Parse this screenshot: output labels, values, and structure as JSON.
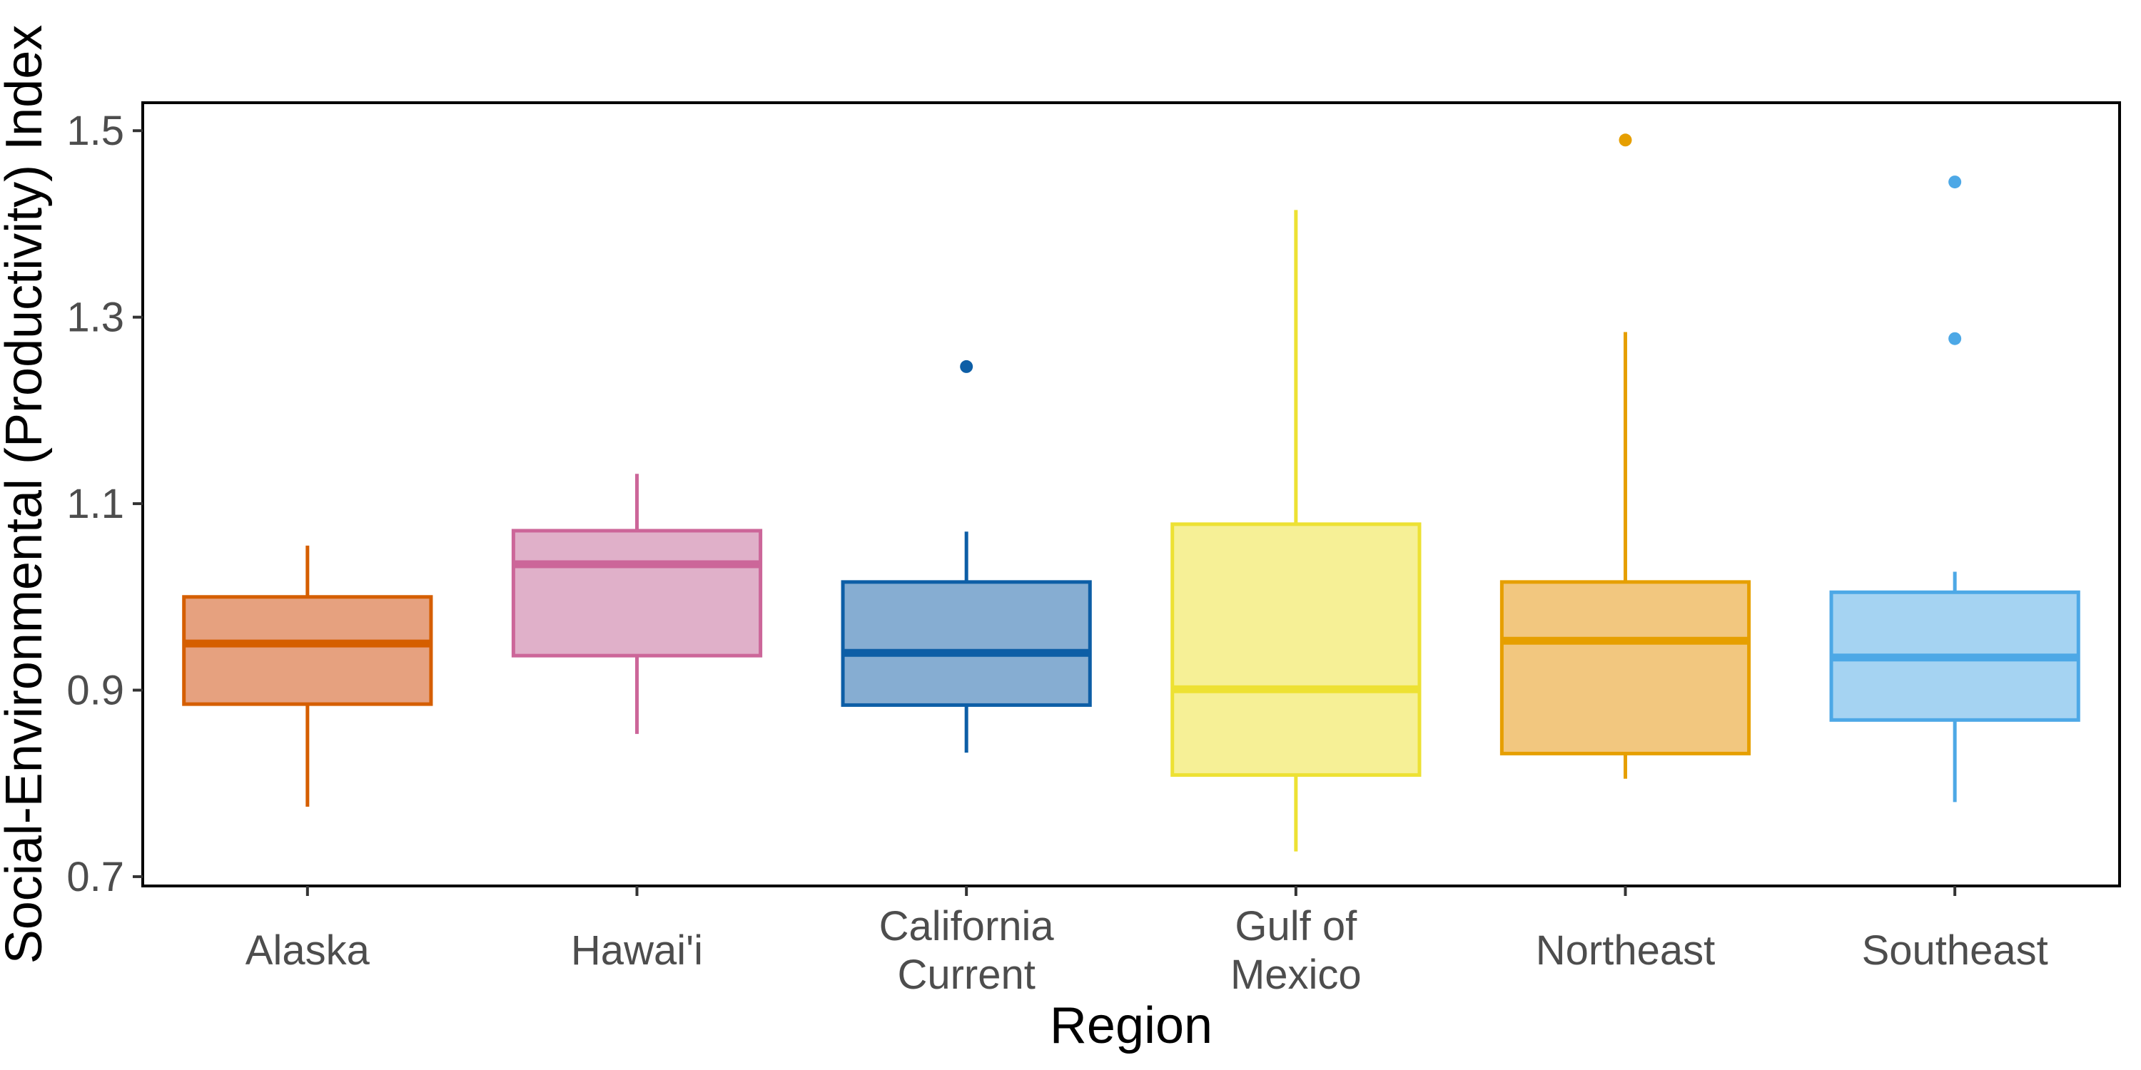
{
  "chart_data": {
    "type": "boxplot",
    "xlabel": "Region",
    "ylabel": "Social-Environmental (Productivity) Index",
    "ylim": [
      0.69,
      1.53
    ],
    "yticks": [
      0.7,
      0.9,
      1.1,
      1.3,
      1.5
    ],
    "ytick_labels": [
      "0.7",
      "0.9",
      "1.1",
      "1.3",
      "1.5"
    ],
    "grid": false,
    "legend": "none",
    "categories": [
      {
        "label_lines": [
          "Alaska"
        ],
        "color": "#D55E00",
        "fill": "#E6A17F",
        "whisker_low": 0.775,
        "q1": 0.885,
        "median": 0.95,
        "q3": 1.0,
        "whisker_high": 1.055,
        "outliers": []
      },
      {
        "label_lines": [
          "Hawai'i"
        ],
        "color": "#CC6699",
        "fill": "#E0B0C9",
        "whisker_low": 0.853,
        "q1": 0.937,
        "median": 1.035,
        "q3": 1.071,
        "whisker_high": 1.132,
        "outliers": []
      },
      {
        "label_lines": [
          "California",
          "Current"
        ],
        "color": "#0D5EA6",
        "fill": "#86ADD2",
        "whisker_low": 0.833,
        "q1": 0.884,
        "median": 0.94,
        "q3": 1.016,
        "whisker_high": 1.07,
        "outliers": [
          1.247
        ]
      },
      {
        "label_lines": [
          "Gulf of",
          "Mexico"
        ],
        "color": "#EDE133",
        "fill": "#F6F096",
        "whisker_low": 0.727,
        "q1": 0.809,
        "median": 0.901,
        "q3": 1.078,
        "whisker_high": 1.415,
        "outliers": []
      },
      {
        "label_lines": [
          "Northeast"
        ],
        "color": "#E69F00",
        "fill": "#F2C77F",
        "whisker_low": 0.805,
        "q1": 0.832,
        "median": 0.953,
        "q3": 1.016,
        "whisker_high": 1.284,
        "outliers": [
          1.49
        ]
      },
      {
        "label_lines": [
          "Southeast"
        ],
        "color": "#4DA8E6",
        "fill": "#A5D3F2",
        "whisker_low": 0.78,
        "q1": 0.868,
        "median": 0.935,
        "q3": 1.005,
        "whisker_high": 1.027,
        "outliers": [
          1.445,
          1.277
        ]
      }
    ]
  }
}
